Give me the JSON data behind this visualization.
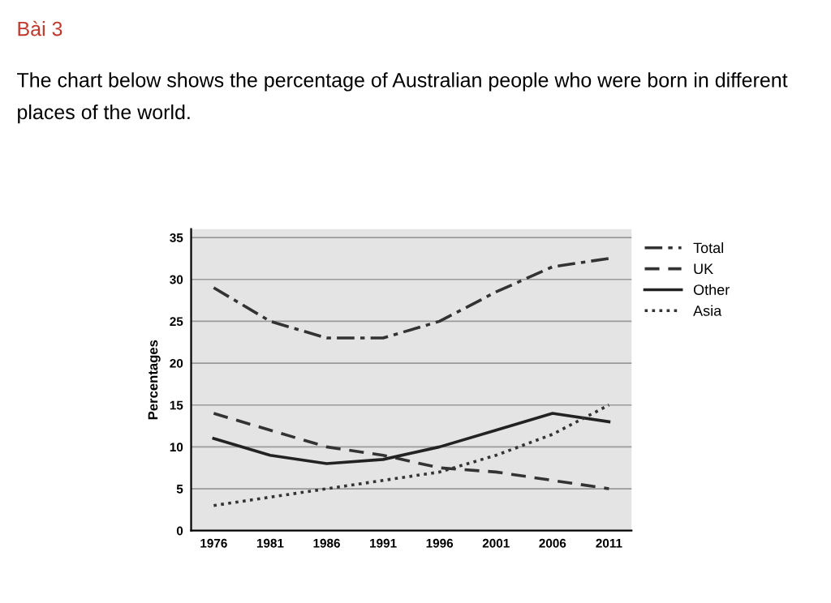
{
  "chart_data": {
    "type": "line",
    "title": "Bài 3",
    "subtitle": "The chart below shows the percentage of Australian people who were born in different places of the world.",
    "ylabel": "Percentages",
    "categories": [
      "1976",
      "1981",
      "1986",
      "1991",
      "1996",
      "2001",
      "2006",
      "2011"
    ],
    "series": [
      {
        "name": "Total",
        "color": "#333333",
        "line_style": "dashdot",
        "values": [
          29,
          25,
          23,
          23,
          25,
          28.5,
          31.5,
          32.5
        ]
      },
      {
        "name": "UK",
        "color": "#333333",
        "line_style": "dashed",
        "values": [
          14,
          12,
          10,
          9,
          7.5,
          7,
          6,
          5
        ]
      },
      {
        "name": "Other",
        "color": "#222222",
        "line_style": "solid",
        "values": [
          11,
          9,
          8,
          8.5,
          10,
          12,
          14,
          13
        ]
      },
      {
        "name": "Asia",
        "color": "#333333",
        "line_style": "dotted",
        "values": [
          3,
          4,
          5,
          6,
          7,
          9,
          11.5,
          15
        ]
      }
    ],
    "ylim": [
      0,
      36
    ],
    "yticks": [
      0,
      5,
      10,
      15,
      20,
      25,
      30,
      35
    ],
    "grid": "y",
    "legend": "top right",
    "marker": "none"
  }
}
